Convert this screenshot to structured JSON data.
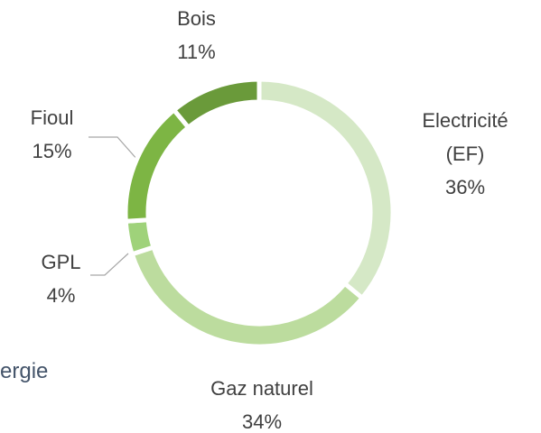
{
  "chart_data": {
    "type": "donut",
    "categories": [
      "Electricité (EF)",
      "Gaz naturel",
      "GPL",
      "Fioul",
      "Bois"
    ],
    "values": [
      36,
      34,
      4,
      15,
      11
    ],
    "value_labels": [
      "36%",
      "34%",
      "4%",
      "15%",
      "11%"
    ],
    "colors": [
      "#d5e8c6",
      "#bcdc9e",
      "#9fd27a",
      "#7db544",
      "#6a9a3a"
    ],
    "annotation": "ergie"
  }
}
